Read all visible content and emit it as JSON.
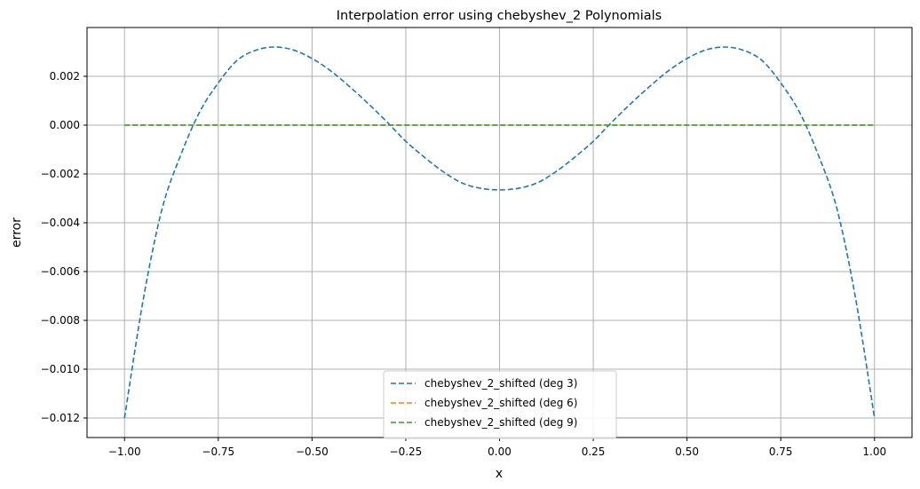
{
  "chart_data": {
    "type": "line",
    "title": "Interpolation error using chebyshev_2 Polynomials",
    "xlabel": "x",
    "ylabel": "error",
    "xlim": [
      -1.1,
      1.1
    ],
    "ylim": [
      -0.0128,
      0.004
    ],
    "xticks": [
      -1.0,
      -0.75,
      -0.5,
      -0.25,
      0.0,
      0.25,
      0.5,
      0.75,
      1.0
    ],
    "xtick_labels": [
      "−1.00",
      "−0.75",
      "−0.50",
      "−0.25",
      "0.00",
      "0.25",
      "0.50",
      "0.75",
      "1.00"
    ],
    "yticks": [
      0.002,
      0.0,
      -0.002,
      -0.004,
      -0.006,
      -0.008,
      -0.01,
      -0.012
    ],
    "ytick_labels": [
      "0.002",
      "0.000",
      "−0.002",
      "−0.004",
      "−0.006",
      "−0.008",
      "−0.010",
      "−0.012"
    ],
    "grid": true,
    "legend_position": "lower-center",
    "series": [
      {
        "name": "chebyshev_2_shifted (deg 3)",
        "color": "#1f77b4",
        "style": "dashed",
        "x": [
          -1.0,
          -0.95,
          -0.9,
          -0.85,
          -0.8,
          -0.75,
          -0.7,
          -0.65,
          -0.6,
          -0.55,
          -0.5,
          -0.45,
          -0.4,
          -0.35,
          -0.3,
          -0.25,
          -0.2,
          -0.15,
          -0.1,
          -0.05,
          0.0,
          0.05,
          0.1,
          0.15,
          0.2,
          0.25,
          0.3,
          0.35,
          0.4,
          0.45,
          0.5,
          0.55,
          0.6,
          0.65,
          0.7,
          0.75,
          0.8,
          0.85,
          0.9,
          0.95,
          1.0
        ],
        "y": [
          -0.012,
          -0.00714,
          -0.00344,
          -0.00122,
          0.00053,
          0.00173,
          0.00265,
          0.00307,
          0.0032,
          0.00308,
          0.00273,
          0.00222,
          0.00158,
          0.00088,
          0.00013,
          -0.00066,
          -0.00132,
          -0.00191,
          -0.00237,
          -0.00259,
          -0.00265,
          -0.00259,
          -0.00237,
          -0.00191,
          -0.00132,
          -0.00066,
          0.00013,
          0.00088,
          0.00158,
          0.00222,
          0.00273,
          0.00308,
          0.0032,
          0.00307,
          0.00265,
          0.00173,
          0.00053,
          -0.00122,
          -0.00344,
          -0.00714,
          -0.012
        ]
      },
      {
        "name": "chebyshev_2_shifted (deg 6)",
        "color": "#ff7f0e",
        "style": "dashed",
        "x": [
          -1.0,
          -0.5,
          0.0,
          0.5,
          1.0
        ],
        "y": [
          0.0,
          0.0,
          0.0,
          0.0,
          0.0
        ]
      },
      {
        "name": "chebyshev_2_shifted (deg 9)",
        "color": "#2ca02c",
        "style": "dashed",
        "x": [
          -1.0,
          -0.5,
          0.0,
          0.5,
          1.0
        ],
        "y": [
          0.0,
          0.0,
          0.0,
          0.0,
          0.0
        ]
      }
    ]
  }
}
